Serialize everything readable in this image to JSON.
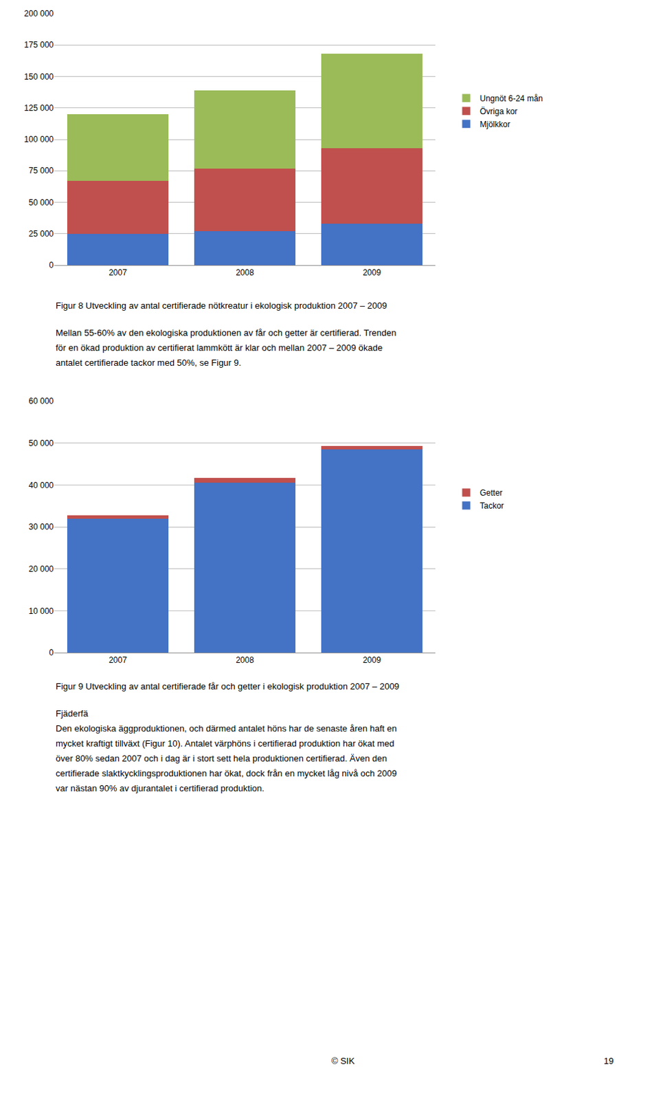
{
  "chart_data": [
    {
      "type": "bar",
      "stacked": true,
      "title": "Figur 8 Utveckling av antal certifierade nötkreatur i ekologisk produktion 2007 – 2009",
      "categories": [
        "2007",
        "2008",
        "2009"
      ],
      "series": [
        {
          "name": "Mjölkkor",
          "color": "#4472C4",
          "values": [
            25000,
            27000,
            33000
          ]
        },
        {
          "name": "Övriga kor",
          "color": "#C0504D",
          "values": [
            42000,
            50000,
            60000
          ]
        },
        {
          "name": "Ungnöt 6-24 mån",
          "color": "#9BBB59",
          "values": [
            53000,
            62000,
            75000
          ]
        }
      ],
      "ylim": [
        0,
        200000
      ],
      "yticks": [
        0,
        {
          "value": 25000,
          "label": "25 000"
        },
        {
          "value": 50000,
          "label": "50 000"
        },
        {
          "value": 75000,
          "label": "75 000"
        },
        {
          "value": 100000,
          "label": "100 000"
        },
        {
          "value": 125000,
          "label": "125 000"
        },
        {
          "value": 150000,
          "label": "150 000"
        },
        {
          "value": 175000,
          "label": "175 000"
        },
        {
          "value": 200000,
          "label": "200 000"
        }
      ],
      "grid": true,
      "legend": "right",
      "annotations": [
        "Mellan 55-60% av den ekologiska produktionen av får och getter är certifierad. Trenden",
        "för en ökad produktion av certifierat lammkött är klar och mellan 2007 – 2009 ökade",
        "antalet certifierade tackor med 50%, se Figur 9."
      ]
    },
    {
      "type": "bar",
      "stacked": true,
      "title": "Figur 9 Utveckling av antal certifierade får och getter i ekologisk produktion 2007 – 2009",
      "categories": [
        "2007",
        "2008",
        "2009"
      ],
      "series": [
        {
          "name": "Tackor",
          "color": "#4472C4",
          "values": [
            32000,
            40500,
            48500
          ]
        },
        {
          "name": "Getter",
          "color": "#C0504D",
          "values": [
            700,
            1200,
            800
          ]
        }
      ],
      "ylim": [
        0,
        60000
      ],
      "yticks": [
        0,
        {
          "value": 10000,
          "label": "10 000"
        },
        {
          "value": 20000,
          "label": "20 000"
        },
        {
          "value": 30000,
          "label": "30 000"
        },
        {
          "value": 40000,
          "label": "40 000"
        },
        {
          "value": 50000,
          "label": "50 000"
        },
        {
          "value": 60000,
          "label": "60 000"
        }
      ],
      "grid": true,
      "legend": "right",
      "annotations": [
        "Fjäderfä",
        "Den ekologiska äggproduktionen, och därmed antalet höns har de senaste åren haft en",
        "mycket kraftigt tillväxt (Figur 10). Antalet värphöns i certifierad produktion har ökat med",
        "över 80% sedan 2007 och i dag är i stort sett hela produktionen certifierad. Även den",
        "certifierade slaktkycklingsproduktionen har ökat, dock från en mycket låg nivå och 2009",
        "var nästan 90% av djurantalet i certifierad produktion.",
        "© SIK",
        "19"
      ]
    }
  ]
}
